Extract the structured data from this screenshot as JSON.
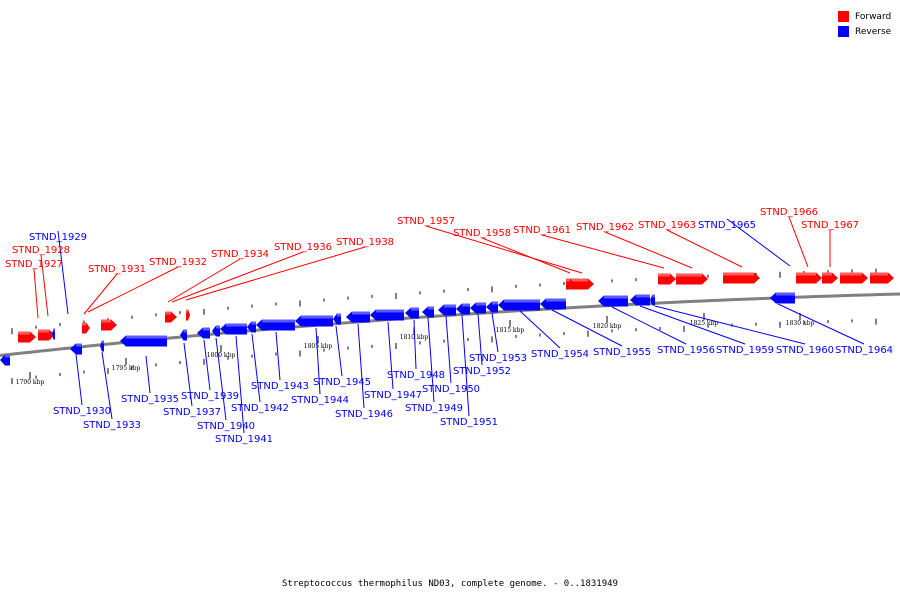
{
  "legend": {
    "forward_label": "Forward",
    "reverse_label": "Reverse",
    "forward_color": "#ff0000",
    "reverse_color": "#0000ff"
  },
  "caption": "Streptococcus thermophilus ND03, complete genome. - 0..1831949",
  "colors": {
    "forward": "#ff0000",
    "reverse": "#0000ff",
    "backbone": "#808080"
  },
  "ticks": [
    "1790 kbp",
    "1795 kbp",
    "1800 kbp",
    "1805 kbp",
    "1810 kbp",
    "1815 kbp",
    "1820 kbp",
    "1825 kbp",
    "1830 kbp"
  ],
  "genes": [
    {
      "label": "STND_1927",
      "strand": "forward"
    },
    {
      "label": "STND_1928",
      "strand": "forward"
    },
    {
      "label": "STND_1929",
      "strand": "reverse"
    },
    {
      "label": "STND_1930",
      "strand": "reverse"
    },
    {
      "label": "STND_1931",
      "strand": "forward"
    },
    {
      "label": "STND_1932",
      "strand": "forward"
    },
    {
      "label": "STND_1933",
      "strand": "reverse"
    },
    {
      "label": "STND_1934",
      "strand": "forward"
    },
    {
      "label": "STND_1935",
      "strand": "reverse"
    },
    {
      "label": "STND_1936",
      "strand": "forward"
    },
    {
      "label": "STND_1937",
      "strand": "reverse"
    },
    {
      "label": "STND_1938",
      "strand": "forward"
    },
    {
      "label": "STND_1939",
      "strand": "reverse"
    },
    {
      "label": "STND_1940",
      "strand": "reverse"
    },
    {
      "label": "STND_1941",
      "strand": "reverse"
    },
    {
      "label": "STND_1942",
      "strand": "reverse"
    },
    {
      "label": "STND_1943",
      "strand": "reverse"
    },
    {
      "label": "STND_1944",
      "strand": "reverse"
    },
    {
      "label": "STND_1945",
      "strand": "reverse"
    },
    {
      "label": "STND_1946",
      "strand": "reverse"
    },
    {
      "label": "STND_1947",
      "strand": "reverse"
    },
    {
      "label": "STND_1948",
      "strand": "reverse"
    },
    {
      "label": "STND_1949",
      "strand": "reverse"
    },
    {
      "label": "STND_1950",
      "strand": "reverse"
    },
    {
      "label": "STND_1951",
      "strand": "reverse"
    },
    {
      "label": "STND_1952",
      "strand": "reverse"
    },
    {
      "label": "STND_1953",
      "strand": "reverse"
    },
    {
      "label": "STND_1954",
      "strand": "reverse"
    },
    {
      "label": "STND_1955",
      "strand": "reverse"
    },
    {
      "label": "STND_1956",
      "strand": "reverse"
    },
    {
      "label": "STND_1957",
      "strand": "forward"
    },
    {
      "label": "STND_1958",
      "strand": "forward"
    },
    {
      "label": "STND_1959",
      "strand": "reverse"
    },
    {
      "label": "STND_1960",
      "strand": "reverse"
    },
    {
      "label": "STND_1961",
      "strand": "forward"
    },
    {
      "label": "STND_1962",
      "strand": "forward"
    },
    {
      "label": "STND_1963",
      "strand": "forward"
    },
    {
      "label": "STND_1964",
      "strand": "reverse"
    },
    {
      "label": "STND_1965",
      "strand": "reverse"
    },
    {
      "label": "STND_1966",
      "strand": "forward"
    },
    {
      "label": "STND_1967",
      "strand": "forward"
    }
  ]
}
